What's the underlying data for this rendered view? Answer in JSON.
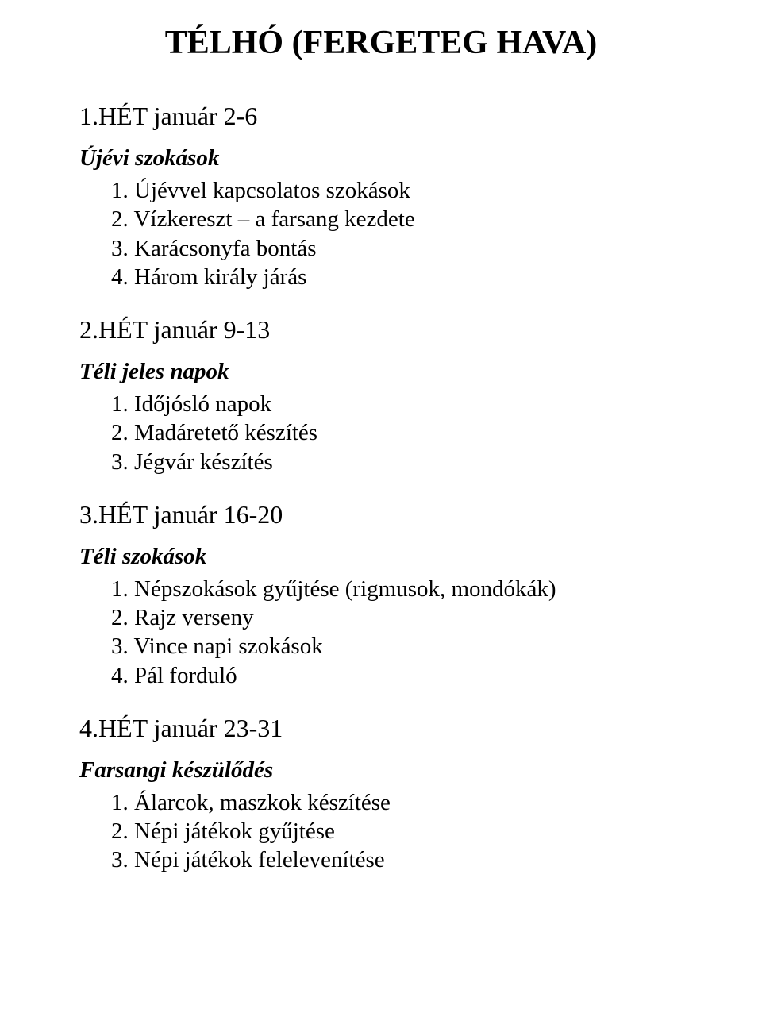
{
  "title": "TÉLHÓ (FERGETEG HAVA)",
  "weeks": [
    {
      "heading": "1.HÉT január 2-6",
      "subtitle": "Újévi szokások",
      "items": [
        "1. Újévvel kapcsolatos szokások",
        "2. Vízkereszt – a farsang kezdete",
        "3. Karácsonyfa bontás",
        "4. Három király járás"
      ]
    },
    {
      "heading": "2.HÉT január 9-13",
      "subtitle": "Téli jeles napok",
      "items": [
        "1. Időjósló napok",
        "2. Madáretető  készítés",
        "3. Jégvár készítés"
      ]
    },
    {
      "heading": "3.HÉT január 16-20",
      "subtitle": "Téli szokások",
      "items": [
        "1. Népszokások gyűjtése (rigmusok, mondókák)",
        "2. Rajz verseny",
        "3. Vince napi szokások",
        "4. Pál forduló"
      ]
    },
    {
      "heading": "4.HÉT január 23-31",
      "subtitle": "Farsangi készülődés",
      "items": [
        "1. Álarcok, maszkok készítése",
        "2. Népi játékok gyűjtése",
        "3. Népi játékok felelevenítése"
      ]
    }
  ]
}
